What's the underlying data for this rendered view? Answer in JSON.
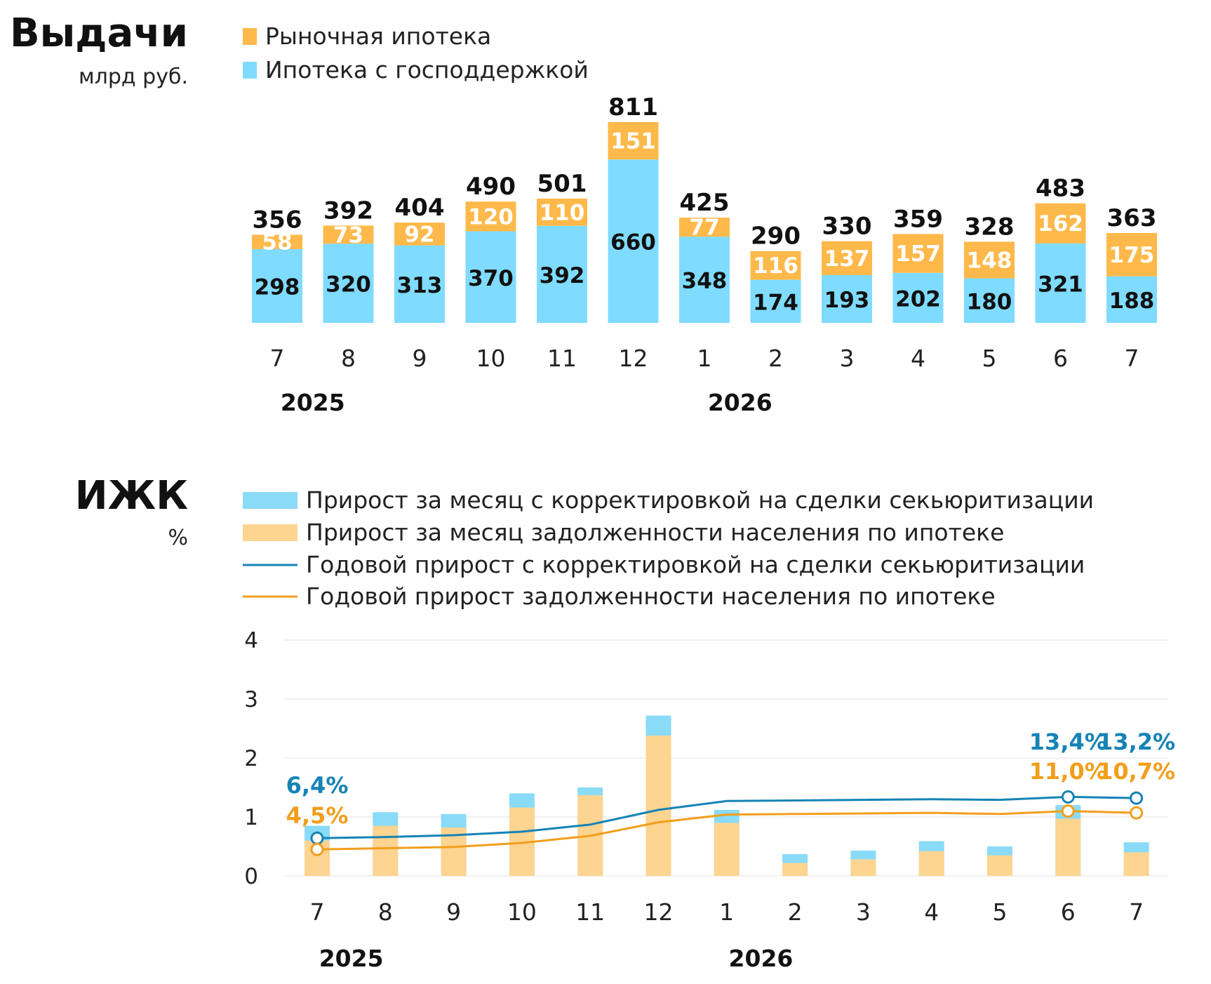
{
  "colors": {
    "market": "#FFB94A",
    "gov": "#7FDBFF",
    "bar2_corr": "#8ADBF7",
    "bar2_debt": "#FDD490",
    "line_corr": "#1583B5",
    "line_debt": "#F29E1B",
    "ann_blue": "#1583B5",
    "ann_orange": "#F29E1B"
  },
  "issuance": {
    "title": "Выдачи",
    "unit": "млрд руб.",
    "legend": [
      {
        "label": "Рыночная ипотека",
        "color": "#FFB94A"
      },
      {
        "label": "Ипотека с господдержкой",
        "color": "#7FDBFF"
      }
    ],
    "years": [
      {
        "label": "2025",
        "after_index": 0
      },
      {
        "label": "2026",
        "after_index": 6
      }
    ]
  },
  "izhk": {
    "title": "ИЖК",
    "unit": "%",
    "legend": [
      {
        "label": "Прирост за месяц с корректировкой на сделки секьюритизации",
        "kind": "bar",
        "color": "#8ADBF7"
      },
      {
        "label": "Прирост за месяц задолженности населения по ипотеке",
        "kind": "bar",
        "color": "#FDD490"
      },
      {
        "label": "Годовой прирост с корректировкой на сделки секьюритизации",
        "kind": "line",
        "color": "#1583B5"
      },
      {
        "label": "Годовой прирост задолженности населения по ипотеке",
        "kind": "line",
        "color": "#F29E1B"
      }
    ],
    "annotations": [
      {
        "text": "6,4%",
        "color": "blue",
        "index": 0
      },
      {
        "text": "4,5%",
        "color": "orange",
        "index": 0
      },
      {
        "text": "13,4%",
        "color": "blue",
        "index": 11
      },
      {
        "text": "11,0%",
        "color": "orange",
        "index": 11
      },
      {
        "text": "13,2%",
        "color": "blue",
        "index": 12
      },
      {
        "text": "10,7%",
        "color": "orange",
        "index": 12
      }
    ],
    "years": [
      {
        "label": "2025",
        "after_index": 0
      },
      {
        "label": "2026",
        "after_index": 6
      }
    ]
  },
  "chart_data": [
    {
      "type": "bar",
      "stacked": true,
      "title": "Выдачи",
      "ylabel": "млрд руб.",
      "categories": [
        "7",
        "8",
        "9",
        "10",
        "11",
        "12",
        "1",
        "2",
        "3",
        "4",
        "5",
        "6",
        "7"
      ],
      "series": [
        {
          "name": "Ипотека с господдержкой",
          "values": [
            298,
            320,
            313,
            370,
            392,
            660,
            348,
            174,
            193,
            202,
            180,
            321,
            188
          ]
        },
        {
          "name": "Рыночная ипотека",
          "values": [
            58,
            73,
            92,
            120,
            110,
            151,
            77,
            116,
            137,
            157,
            148,
            162,
            175
          ]
        }
      ],
      "totals": [
        356,
        392,
        404,
        490,
        501,
        811,
        425,
        290,
        330,
        359,
        328,
        483,
        363
      ],
      "ylim": [
        0,
        811
      ]
    },
    {
      "type": "bar",
      "title": "ИЖК",
      "ylabel": "%",
      "categories": [
        "7",
        "8",
        "9",
        "10",
        "11",
        "12",
        "1",
        "2",
        "3",
        "4",
        "5",
        "6",
        "7"
      ],
      "yticks": [
        "0",
        "1",
        "2",
        "3",
        "4"
      ],
      "ylim": [
        0,
        4
      ],
      "grid": true,
      "series": [
        {
          "name": "Прирост за месяц с корректировкой на сделки секьюритизации",
          "type": "bar",
          "values": [
            0.85,
            1.08,
            1.05,
            1.4,
            1.5,
            2.72,
            1.12,
            0.37,
            0.43,
            0.59,
            0.5,
            1.2,
            0.57
          ]
        },
        {
          "name": "Прирост за месяц задолженности населения по ипотеке",
          "type": "bar",
          "values": [
            0.6,
            0.85,
            0.82,
            1.16,
            1.37,
            2.38,
            0.9,
            0.22,
            0.28,
            0.42,
            0.35,
            0.97,
            0.4
          ]
        },
        {
          "name": "Годовой прирост с корректировкой на сделки секьюритизации",
          "type": "line",
          "values": [
            0.64,
            0.66,
            0.69,
            0.75,
            0.87,
            1.12,
            1.27,
            1.28,
            1.29,
            1.3,
            1.29,
            1.34,
            1.32
          ]
        },
        {
          "name": "Годовой прирост задолженности населения по ипотеке",
          "type": "line",
          "values": [
            0.45,
            0.47,
            0.49,
            0.56,
            0.68,
            0.91,
            1.04,
            1.05,
            1.06,
            1.07,
            1.05,
            1.1,
            1.07
          ]
        }
      ]
    }
  ]
}
